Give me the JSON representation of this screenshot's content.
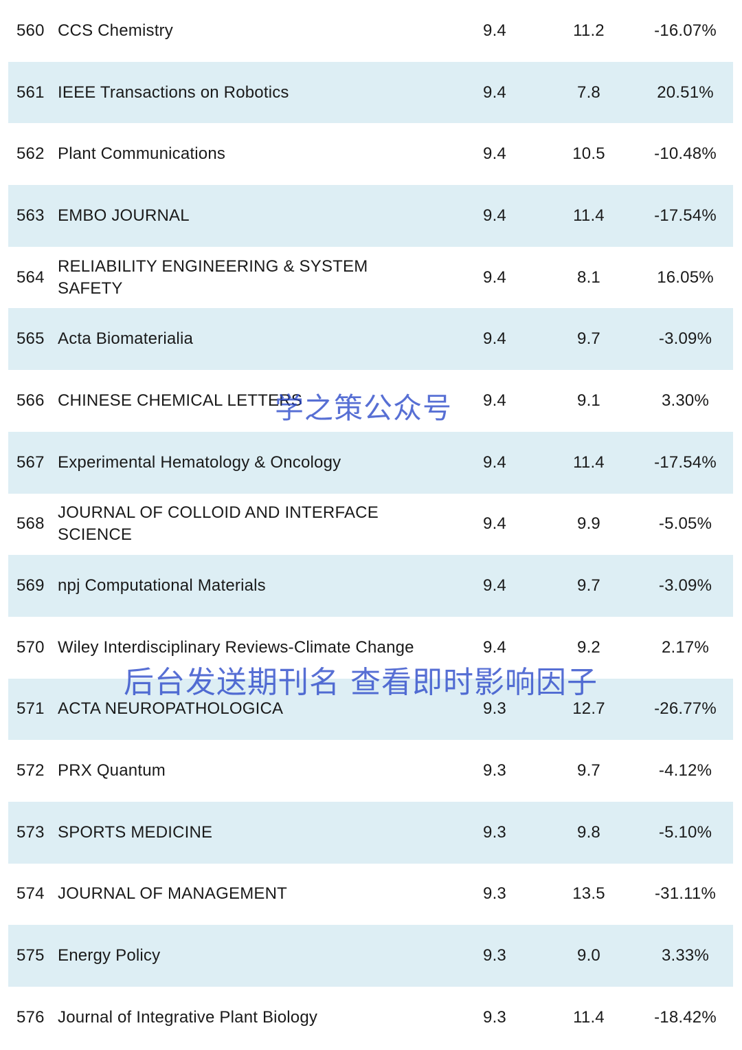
{
  "rows": [
    {
      "rank": "560",
      "name": "CCS Chemistry",
      "v1": "9.4",
      "v2": "11.2",
      "pct": "-16.07%"
    },
    {
      "rank": "561",
      "name": "IEEE Transactions on Robotics",
      "v1": "9.4",
      "v2": "7.8",
      "pct": "20.51%"
    },
    {
      "rank": "562",
      "name": "Plant Communications",
      "v1": "9.4",
      "v2": "10.5",
      "pct": "-10.48%"
    },
    {
      "rank": "563",
      "name": "EMBO JOURNAL",
      "v1": "9.4",
      "v2": "11.4",
      "pct": "-17.54%"
    },
    {
      "rank": "564",
      "name": "RELIABILITY ENGINEERING & SYSTEM SAFETY",
      "v1": "9.4",
      "v2": "8.1",
      "pct": "16.05%"
    },
    {
      "rank": "565",
      "name": "Acta Biomaterialia",
      "v1": "9.4",
      "v2": "9.7",
      "pct": "-3.09%"
    },
    {
      "rank": "566",
      "name": "CHINESE CHEMICAL LETTERS",
      "v1": "9.4",
      "v2": "9.1",
      "pct": "3.30%"
    },
    {
      "rank": "567",
      "name": "Experimental Hematology & Oncology",
      "v1": "9.4",
      "v2": "11.4",
      "pct": "-17.54%"
    },
    {
      "rank": "568",
      "name": "JOURNAL OF COLLOID AND INTERFACE SCIENCE",
      "v1": "9.4",
      "v2": "9.9",
      "pct": "-5.05%"
    },
    {
      "rank": "569",
      "name": "npj Computational Materials",
      "v1": "9.4",
      "v2": "9.7",
      "pct": "-3.09%"
    },
    {
      "rank": "570",
      "name": "Wiley Interdisciplinary Reviews-Climate Change",
      "v1": "9.4",
      "v2": "9.2",
      "pct": "2.17%"
    },
    {
      "rank": "571",
      "name": "ACTA NEUROPATHOLOGICA",
      "v1": "9.3",
      "v2": "12.7",
      "pct": "-26.77%"
    },
    {
      "rank": "572",
      "name": "PRX Quantum",
      "v1": "9.3",
      "v2": "9.7",
      "pct": "-4.12%"
    },
    {
      "rank": "573",
      "name": "SPORTS MEDICINE",
      "v1": "9.3",
      "v2": "9.8",
      "pct": "-5.10%"
    },
    {
      "rank": "574",
      "name": "JOURNAL OF MANAGEMENT",
      "v1": "9.3",
      "v2": "13.5",
      "pct": "-31.11%"
    },
    {
      "rank": "575",
      "name": "Energy Policy",
      "v1": "9.3",
      "v2": "9.0",
      "pct": "3.33%"
    },
    {
      "rank": "576",
      "name": "Journal of Integrative Plant Biology",
      "v1": "9.3",
      "v2": "11.4",
      "pct": "-18.42%"
    }
  ],
  "watermarks": {
    "top": "学之策公众号",
    "bottom": "后台发送期刊名 查看即时影响因子"
  },
  "colors": {
    "shaded_row": "#ddeef4",
    "watermark": "#2846c8"
  }
}
